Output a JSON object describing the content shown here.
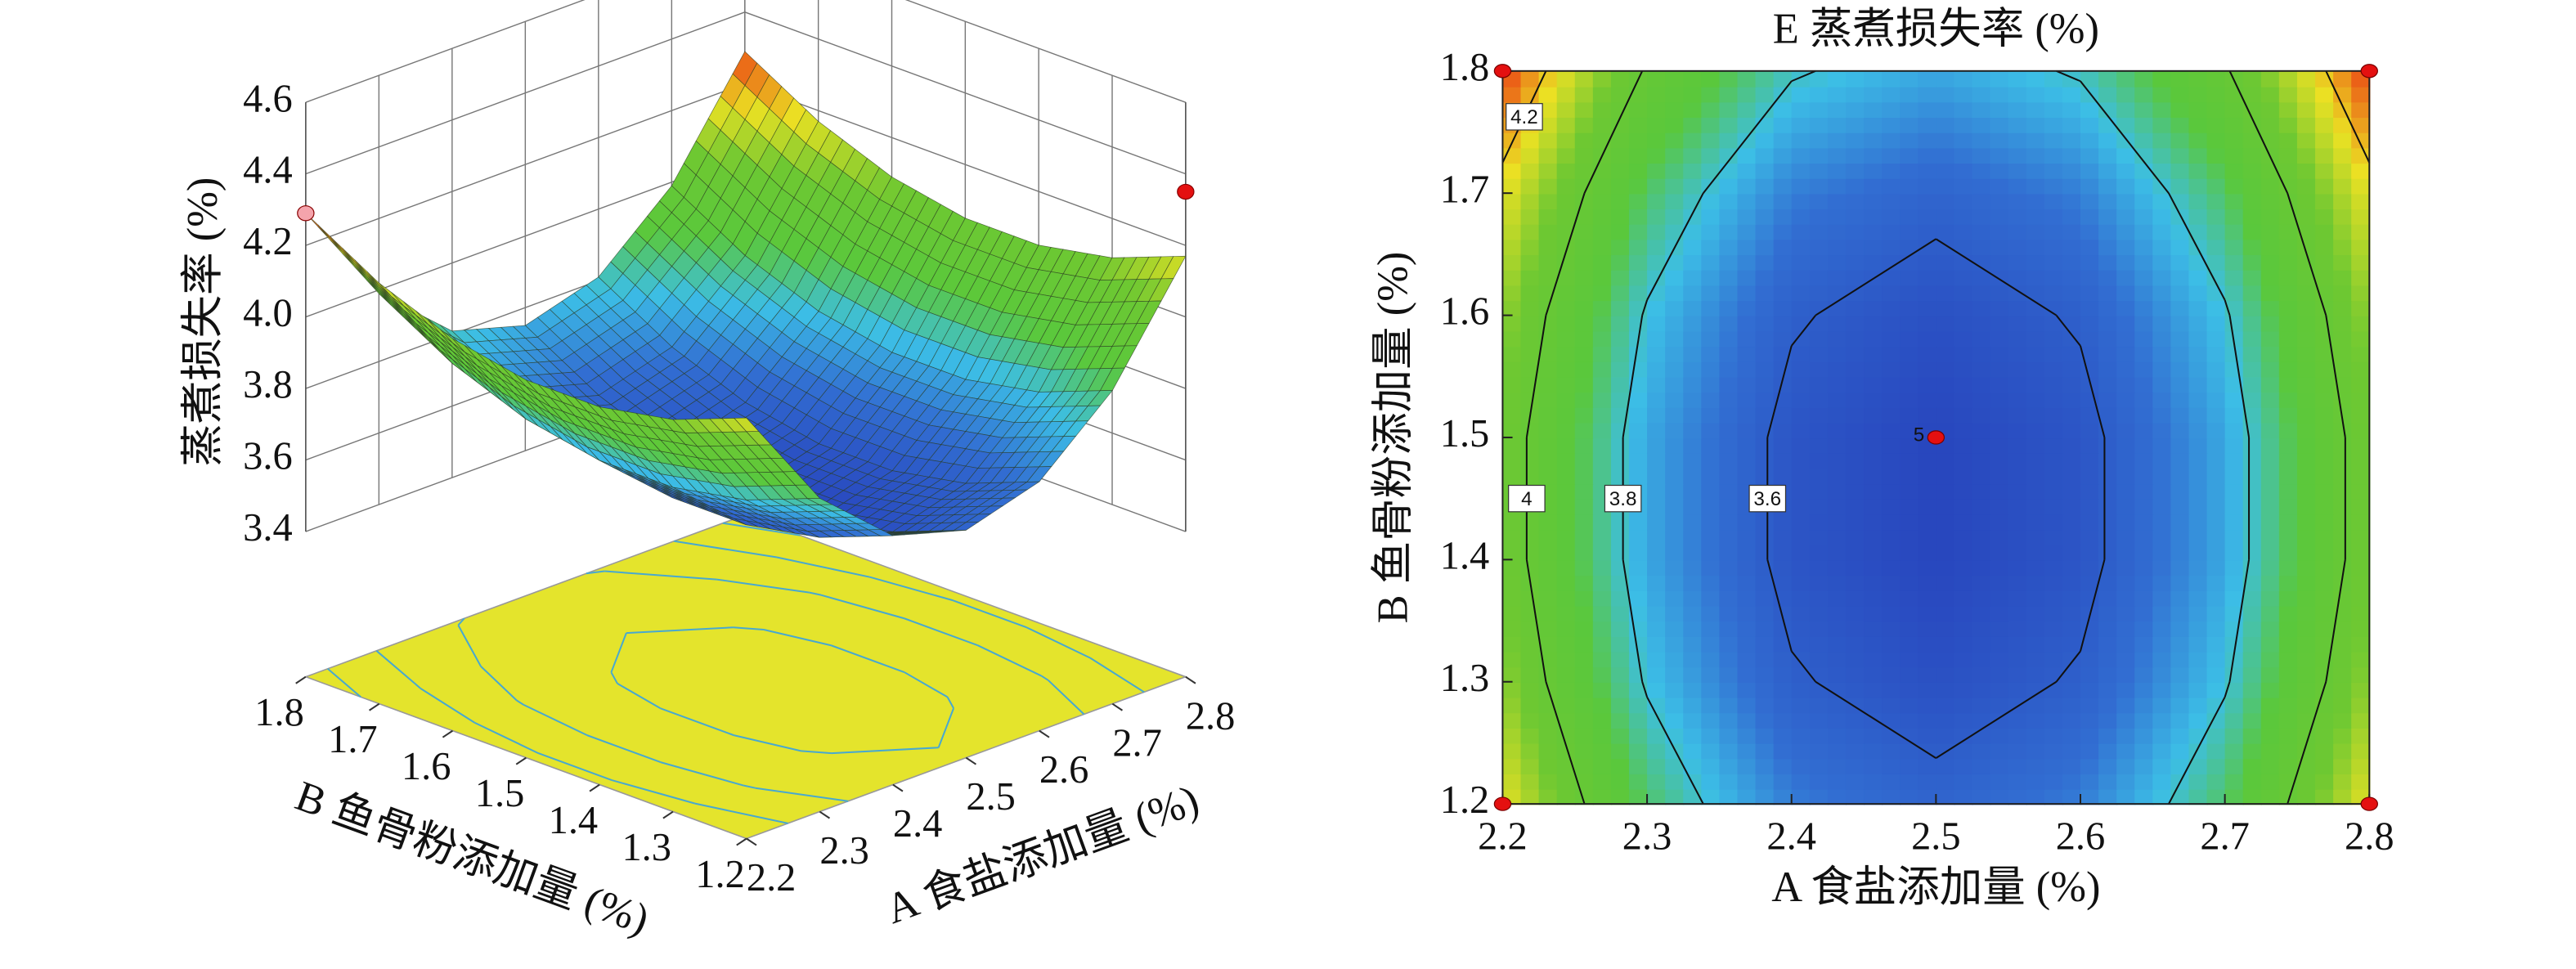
{
  "chart_data": [
    {
      "type": "surface",
      "zlabel": "蒸煮损失率 (%)",
      "xlabel": "A 食盐添加量 (%)",
      "ylabel": "B 鱼骨粉添加量 (%)",
      "xlim": [
        2.2,
        2.8
      ],
      "xticks": [
        2.2,
        2.3,
        2.4,
        2.5,
        2.6,
        2.7,
        2.8
      ],
      "ylim": [
        1.2,
        1.8
      ],
      "yticks": [
        1.2,
        1.3,
        1.4,
        1.5,
        1.6,
        1.7,
        1.8
      ],
      "zlim": [
        3.4,
        4.6
      ],
      "zticks": [
        3.4,
        3.6,
        3.8,
        {
          "value": 4,
          "label": "4.0"
        },
        4.2,
        4.4,
        4.6
      ],
      "grid_x": [
        2.2,
        2.3,
        2.4,
        2.5,
        2.6,
        2.7,
        2.8
      ],
      "grid_y": [
        1.2,
        1.3,
        1.4,
        1.5,
        1.6,
        1.7,
        1.8
      ],
      "z": [
        [
          4.17,
          3.87,
          3.69,
          3.63,
          3.69,
          3.87,
          4.17
        ],
        [
          4.09,
          3.79,
          3.61,
          3.55,
          3.61,
          3.79,
          4.09
        ],
        [
          4.05,
          3.75,
          3.57,
          3.51,
          3.57,
          3.75,
          4.05
        ],
        [
          4.05,
          3.75,
          3.57,
          3.51,
          3.57,
          3.75,
          4.05
        ],
        [
          4.09,
          3.79,
          3.61,
          3.55,
          3.61,
          3.79,
          4.09
        ],
        [
          4.17,
          3.87,
          3.69,
          3.63,
          3.69,
          3.87,
          4.17
        ],
        [
          4.29,
          3.99,
          3.81,
          3.75,
          3.81,
          3.99,
          4.29
        ]
      ],
      "floor_color": "#e4e42c",
      "contour_color": "#48a8d0",
      "contour_levels": [
        3.6,
        3.8,
        4,
        4.2
      ],
      "points": {
        "x": [
          2.2,
          2.8
        ],
        "y": [
          1.8,
          1.2
        ],
        "z": [
          4.29,
          4.35
        ],
        "colors": [
          "#f4a4ac",
          "#e41010"
        ]
      }
    },
    {
      "type": "contour",
      "title": "E 蒸煮损失率 (%)",
      "xlabel": "A 食盐添加量 (%)",
      "ylabel": "B 鱼骨粉添加量 (%)",
      "xlim": [
        2.2,
        2.8
      ],
      "xticks": [
        2.2,
        2.3,
        2.4,
        2.5,
        2.6,
        2.7,
        2.8
      ],
      "ylim": [
        1.2,
        1.8
      ],
      "yticks": [
        1.2,
        1.3,
        1.4,
        1.5,
        1.6,
        1.7,
        1.8
      ],
      "grid_x": [
        2.2,
        2.3,
        2.4,
        2.5,
        2.6,
        2.7,
        2.8
      ],
      "grid_y": [
        1.2,
        1.3,
        1.4,
        1.5,
        1.6,
        1.7,
        1.8
      ],
      "z": [
        [
          4.17,
          3.87,
          3.69,
          3.63,
          3.69,
          3.87,
          4.17
        ],
        [
          4.09,
          3.79,
          3.61,
          3.55,
          3.61,
          3.79,
          4.09
        ],
        [
          4.05,
          3.75,
          3.57,
          3.51,
          3.57,
          3.75,
          4.05
        ],
        [
          4.05,
          3.75,
          3.57,
          3.51,
          3.57,
          3.75,
          4.05
        ],
        [
          4.09,
          3.79,
          3.61,
          3.55,
          3.61,
          3.79,
          4.09
        ],
        [
          4.17,
          3.87,
          3.69,
          3.63,
          3.69,
          3.87,
          4.17
        ],
        [
          4.29,
          3.99,
          3.81,
          3.75,
          3.81,
          3.99,
          4.29
        ]
      ],
      "contour_levels": [
        3.6,
        3.8,
        4,
        4.2
      ],
      "points": {
        "x": [
          2.2,
          2.8,
          2.2,
          2.8,
          2.5
        ],
        "y": [
          1.8,
          1.8,
          1.2,
          1.2,
          1.5
        ],
        "color": "#e41010"
      },
      "center_label": "5"
    }
  ]
}
